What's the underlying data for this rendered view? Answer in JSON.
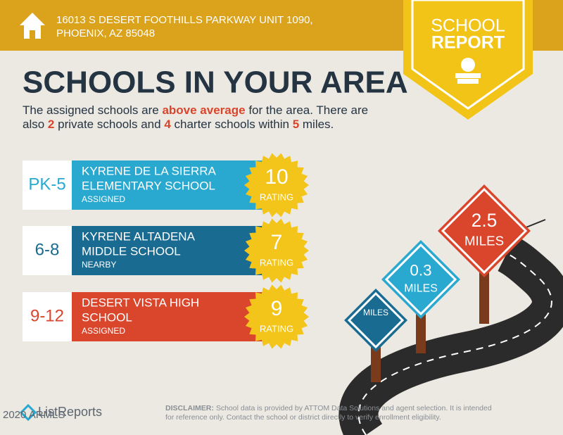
{
  "header": {
    "address_line1": "16013 S DESERT FOOTHILLS PARKWAY UNIT 1090,",
    "address_line2": "PHOENIX, AZ 85048"
  },
  "badge": {
    "line1": "SCHOOL",
    "line2": "REPORT"
  },
  "title": "SCHOOLS IN YOUR AREA",
  "intro": {
    "line1": [
      "The assigned schools are ",
      "above average",
      " for the area. There are"
    ],
    "line2": [
      "also ",
      "2",
      " private schools and ",
      "4",
      " charter schools within ",
      "5",
      " miles."
    ]
  },
  "schools": [
    {
      "grades": "PK-5",
      "name_line1": "KYRENE DE LA SIERRA",
      "name_line2": "ELEMENTARY SCHOOL",
      "status": "ASSIGNED",
      "rating": 10,
      "rating_label": "RATING"
    },
    {
      "grades": "6-8",
      "name_line1": "KYRENE ALTADENA",
      "name_line2": "MIDDLE SCHOOL",
      "status": "NEARBY",
      "rating": 7,
      "rating_label": "RATING"
    },
    {
      "grades": "9-12",
      "name_line1": "DESERT VISTA HIGH",
      "name_line2": "SCHOOL",
      "status": "ASSIGNED",
      "rating": 9,
      "rating_label": "RATING"
    }
  ],
  "signs": [
    {
      "distance": "2.5",
      "unit": "MILES"
    },
    {
      "distance": "0.3",
      "unit": "MILES"
    },
    {
      "unit": "MILES"
    }
  ],
  "footer": {
    "logo": "ListReports",
    "copyright": "2020 ARMLS",
    "disclaimer_label": "DISCLAIMER:",
    "disclaimer_line1": "School data is provided by ATTOM Data Solutions and agent selection. It is intended",
    "disclaimer_line2": "for reference only. Contact the school or district directly to verify enrollment eligibility."
  }
}
